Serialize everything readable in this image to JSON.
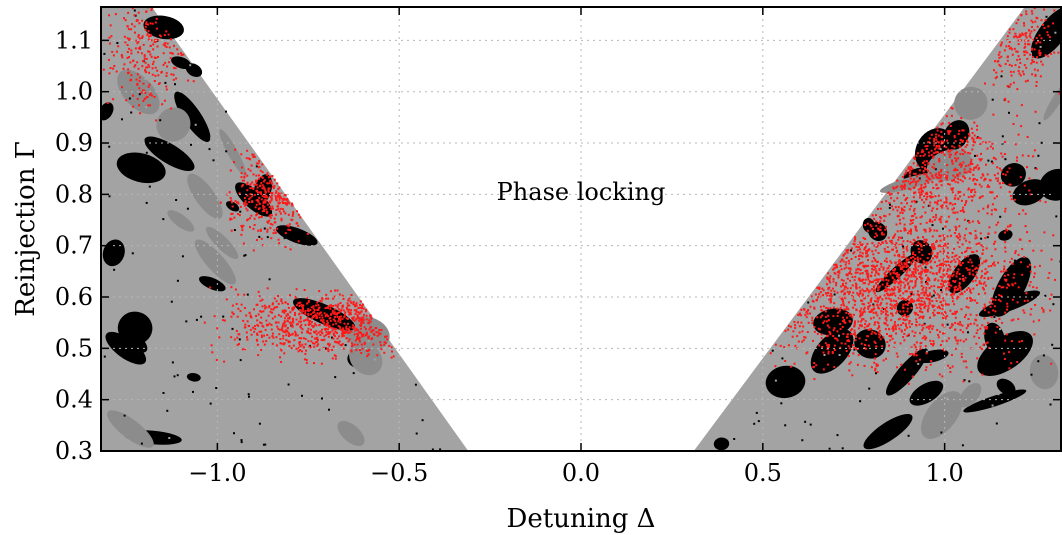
{
  "chart_data": {
    "type": "heatmap",
    "xlabel": "Detuning Δ",
    "ylabel": "Reinjection Γ",
    "xlim": [
      -1.32,
      1.32
    ],
    "ylim": [
      0.3,
      1.165
    ],
    "xticks": [
      -1.0,
      -0.5,
      0.0,
      0.5,
      1.0
    ],
    "xtick_labels": [
      "−1.0",
      "−0.5",
      "0.0",
      "0.5",
      "1.0"
    ],
    "yticks": [
      0.3,
      0.4,
      0.5,
      0.6,
      0.7,
      0.8,
      0.9,
      1.0,
      1.1
    ],
    "ytick_labels": [
      "0.3",
      "0.4",
      "0.5",
      "0.6",
      "0.7",
      "0.8",
      "0.9",
      "1.0",
      "1.1"
    ],
    "grid": true,
    "colors": {
      "unlocked_light": "#a3a3a3",
      "unlocked_mid": "#8c8c8c",
      "unlocked_dark": "#000000",
      "red_regime": "#ff1a1a",
      "locked": "#ffffff"
    },
    "regions": [
      {
        "name": "Phase locking",
        "boundary_left": [
          [
            -1.18,
            1.165
          ],
          [
            -0.31,
            0.3
          ]
        ],
        "boundary_right": [
          [
            0.31,
            0.3
          ],
          [
            1.22,
            1.165
          ]
        ]
      }
    ],
    "annotations": [
      {
        "text": "Phase locking",
        "x": 0.0,
        "y": 0.805
      }
    ]
  }
}
